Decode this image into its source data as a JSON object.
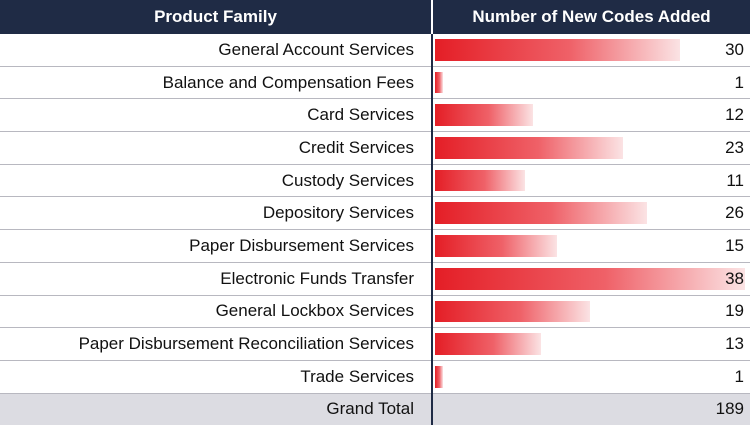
{
  "chart_data": {
    "type": "table",
    "columns": [
      "Product Family",
      "Number of New Codes Added"
    ],
    "rows": [
      {
        "category": "General Account Services",
        "value": 30
      },
      {
        "category": "Balance and Compensation Fees",
        "value": 1
      },
      {
        "category": "Card Services",
        "value": 12
      },
      {
        "category": "Credit Services",
        "value": 23
      },
      {
        "category": "Custody Services",
        "value": 11
      },
      {
        "category": "Depository Services",
        "value": 26
      },
      {
        "category": "Paper Disbursement Services",
        "value": 15
      },
      {
        "category": "Electronic Funds Transfer",
        "value": 38
      },
      {
        "category": "General Lockbox Services",
        "value": 19
      },
      {
        "category": "Paper Disbursement Reconciliation Services",
        "value": 13
      },
      {
        "category": "Trade Services",
        "value": 1
      }
    ],
    "total": {
      "label": "Grand Total",
      "value": 189
    },
    "bar_max": 38,
    "bar_color": "#e41e26",
    "header_color": "#1f2b45"
  }
}
